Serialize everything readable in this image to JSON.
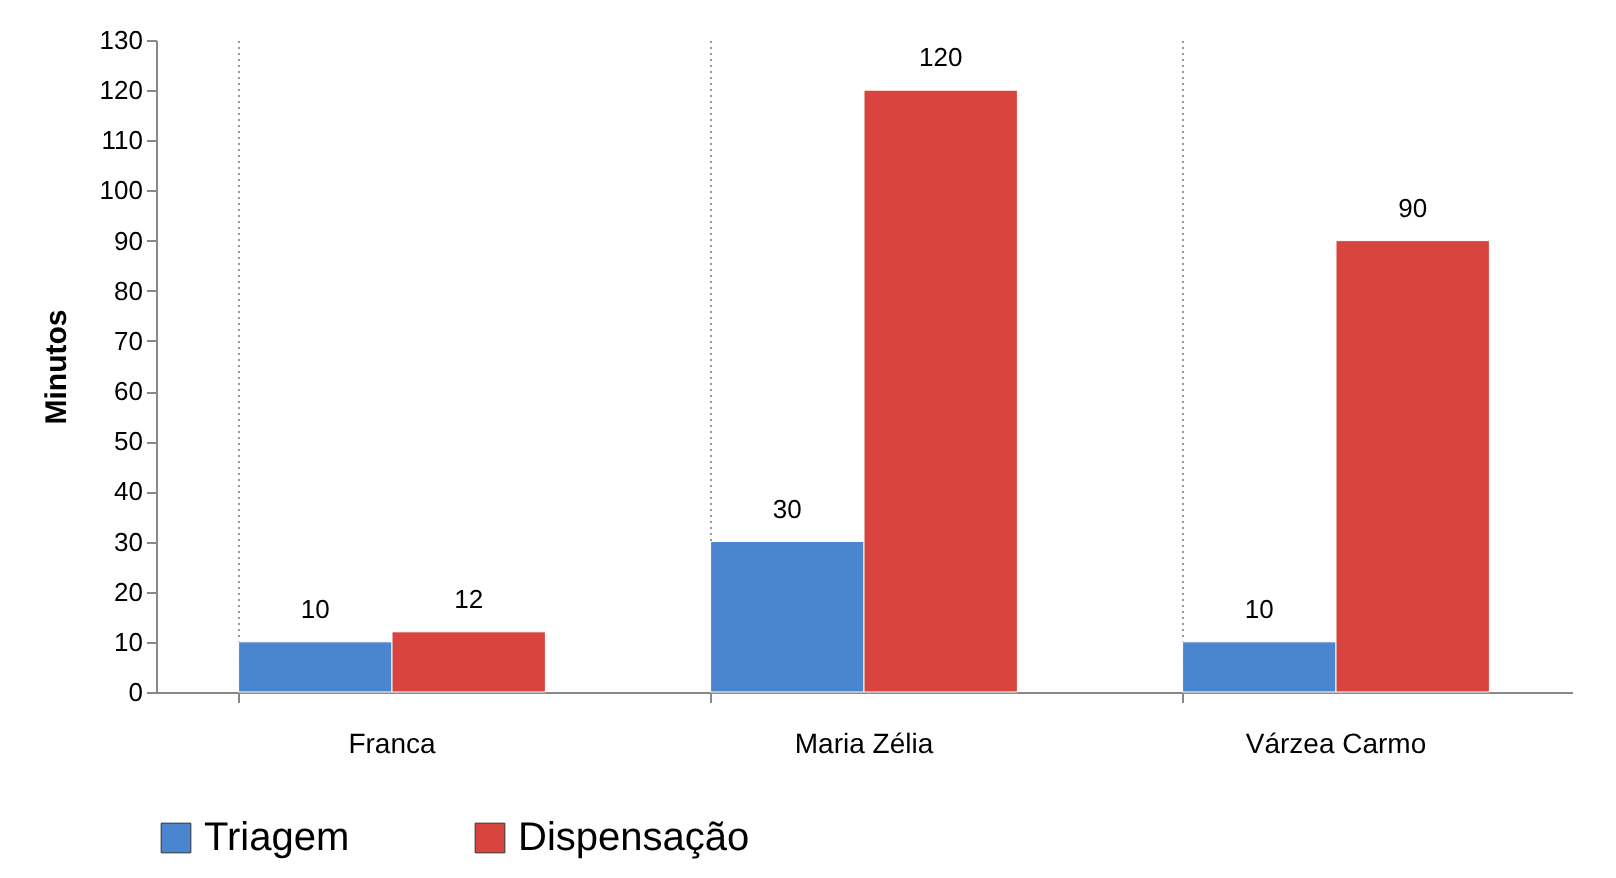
{
  "chart_data": {
    "type": "bar",
    "ylabel": "Minutos",
    "categories": [
      "Franca",
      "Maria Zélia",
      "Várzea Carmo"
    ],
    "series": [
      {
        "name": "Triagem",
        "color": "#4a86d0",
        "values": [
          10,
          30,
          10
        ]
      },
      {
        "name": "Dispensação",
        "color": "#d8453f",
        "values": [
          12,
          120,
          90
        ]
      }
    ],
    "ylim": [
      0,
      130
    ],
    "yticks": [
      0,
      10,
      20,
      30,
      40,
      50,
      60,
      70,
      80,
      90,
      100,
      110,
      120,
      130
    ],
    "grid": "x",
    "legend": "bottom",
    "data_labels": true
  }
}
